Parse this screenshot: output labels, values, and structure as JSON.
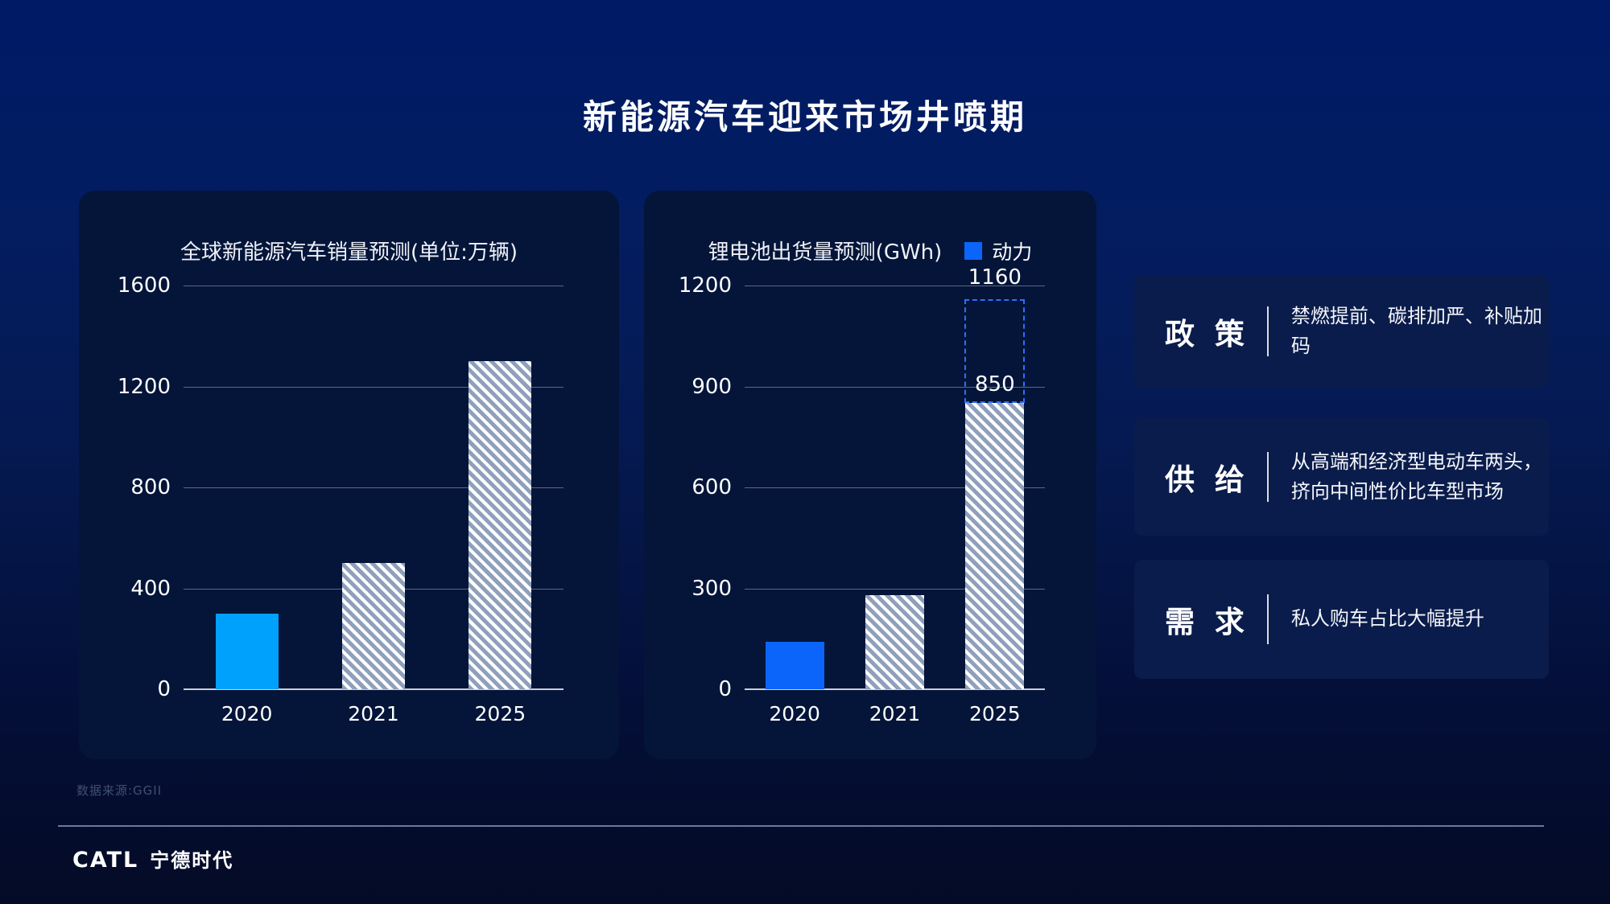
{
  "title": "新能源汽车迎来市场井喷期",
  "chart_data": [
    {
      "type": "bar",
      "title": "全球新能源汽车销量预测(单位:万辆)",
      "categories": [
        "2020",
        "2021",
        "2025"
      ],
      "values": [
        300,
        500,
        1300
      ],
      "ylim": [
        0,
        1600
      ],
      "yticks": [
        0,
        400,
        800,
        1200,
        1600
      ],
      "bar_styles": [
        "solid",
        "hatch",
        "hatch"
      ],
      "solid_color": "#00a1fc",
      "hatch_base_color": "#8fa0bc",
      "grid": true
    },
    {
      "type": "bar",
      "title": "锂电池出货量预测(GWh)",
      "categories": [
        "2020",
        "2021",
        "2025"
      ],
      "values": [
        140,
        280,
        850
      ],
      "ylim": [
        0,
        1200
      ],
      "yticks": [
        0,
        300,
        600,
        900,
        1200
      ],
      "bar_styles": [
        "solid",
        "hatch",
        "hatch"
      ],
      "solid_color": "#0b65fb",
      "hatch_base_color": "#8fa0bc",
      "grid": true,
      "legend": [
        {
          "label": "动力",
          "color": "#0b65fb"
        }
      ],
      "annotation": {
        "category": "2025",
        "bar_value_label": "850",
        "total_value": 1160,
        "total_label": "1160",
        "dashed_color": "#2e6fff"
      }
    }
  ],
  "info_panels": [
    {
      "heading": "政 策",
      "desc": "禁燃提前、碳排加严、补贴加码"
    },
    {
      "heading": "供 给",
      "desc": "从高端和经济型电动车两头，\n挤向中间性价比车型市场"
    },
    {
      "heading": "需 求",
      "desc": "私人购车占比大幅提升"
    }
  ],
  "source_note": "数据来源:GGII",
  "logo": {
    "latin": "CATL",
    "chinese": "宁德时代"
  },
  "colors": {
    "background_top": "#001a66",
    "background_bottom": "#040b26",
    "chart_panel_bg": "#041539",
    "info_panel_bg": "#0a1c4b",
    "accent_light_blue": "#00a1fc",
    "accent_blue": "#0b65fb",
    "dashed_blue": "#2e6fff",
    "hatch_fill": "#8fa0bc"
  }
}
